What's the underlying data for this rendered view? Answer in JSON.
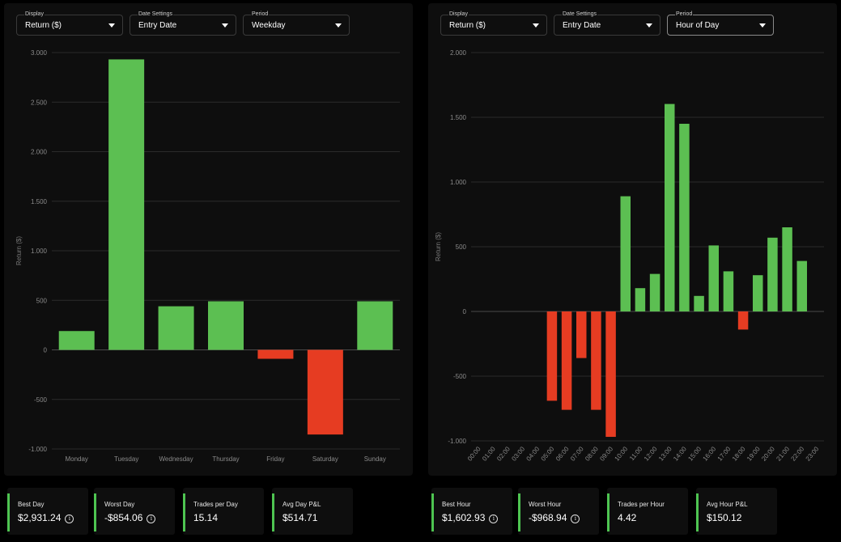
{
  "left_panel": {
    "controls": [
      {
        "label": "Display",
        "value": "Return ($)"
      },
      {
        "label": "Date Settings",
        "value": "Entry Date"
      },
      {
        "label": "Period",
        "value": "Weekday"
      }
    ]
  },
  "right_panel": {
    "controls": [
      {
        "label": "Display",
        "value": "Return ($)"
      },
      {
        "label": "Date Settings",
        "value": "Entry Date"
      },
      {
        "label": "Period",
        "value": "Hour of Day"
      }
    ]
  },
  "colors": {
    "positive": "#5cbf52",
    "negative": "#e63c22",
    "accent": "#4ec451"
  },
  "chart_data": [
    {
      "type": "bar",
      "ylabel": "Return ($)",
      "ylim": [
        -1000,
        3000
      ],
      "yticks": [
        -1000,
        -500,
        0,
        500,
        1000,
        1500,
        2000,
        2500,
        3000
      ],
      "ytick_labels": [
        "-1.000",
        "-500",
        "0",
        "500",
        "1.000",
        "1.500",
        "2.000",
        "2.500",
        "3.000"
      ],
      "categories": [
        "Monday",
        "Tuesday",
        "Wednesday",
        "Thursday",
        "Friday",
        "Saturday",
        "Sunday"
      ],
      "values": [
        190,
        2931.24,
        440,
        490,
        -90,
        -854.06,
        490
      ],
      "grid": true
    },
    {
      "type": "bar",
      "ylabel": "Return ($)",
      "ylim": [
        -1000,
        2000
      ],
      "yticks": [
        -1000,
        -500,
        0,
        500,
        1000,
        1500,
        2000
      ],
      "ytick_labels": [
        "-1.000",
        "-500",
        "0",
        "500",
        "1.000",
        "1.500",
        "2.000"
      ],
      "categories": [
        "00:00",
        "01:00",
        "02:00",
        "03:00",
        "04:00",
        "05:00",
        "06:00",
        "07:00",
        "08:00",
        "09:00",
        "10:00",
        "11:00",
        "12:00",
        "13:00",
        "14:00",
        "15:00",
        "16:00",
        "17:00",
        "18:00",
        "19:00",
        "20:00",
        "21:00",
        "22:00",
        "23:00"
      ],
      "values": [
        0,
        0,
        0,
        0,
        0,
        -690,
        -760,
        -360,
        -760,
        -968.94,
        890,
        180,
        290,
        1602.93,
        1450,
        120,
        510,
        310,
        -140,
        280,
        570,
        650,
        390,
        0
      ],
      "grid": true
    }
  ],
  "stats_left": [
    {
      "label": "Best Day",
      "value": "$2,931.24",
      "info": true
    },
    {
      "label": "Worst Day",
      "value": "-$854.06",
      "info": true
    },
    {
      "label": "Trades per Day",
      "value": "15.14",
      "info": false
    },
    {
      "label": "Avg Day P&L",
      "value": "$514.71",
      "info": false
    }
  ],
  "stats_right": [
    {
      "label": "Best Hour",
      "value": "$1,602.93",
      "info": true
    },
    {
      "label": "Worst Hour",
      "value": "-$968.94",
      "info": true
    },
    {
      "label": "Trades per Hour",
      "value": "4.42",
      "info": false
    },
    {
      "label": "Avg Hour P&L",
      "value": "$150.12",
      "info": false
    }
  ],
  "info_glyph": "i"
}
